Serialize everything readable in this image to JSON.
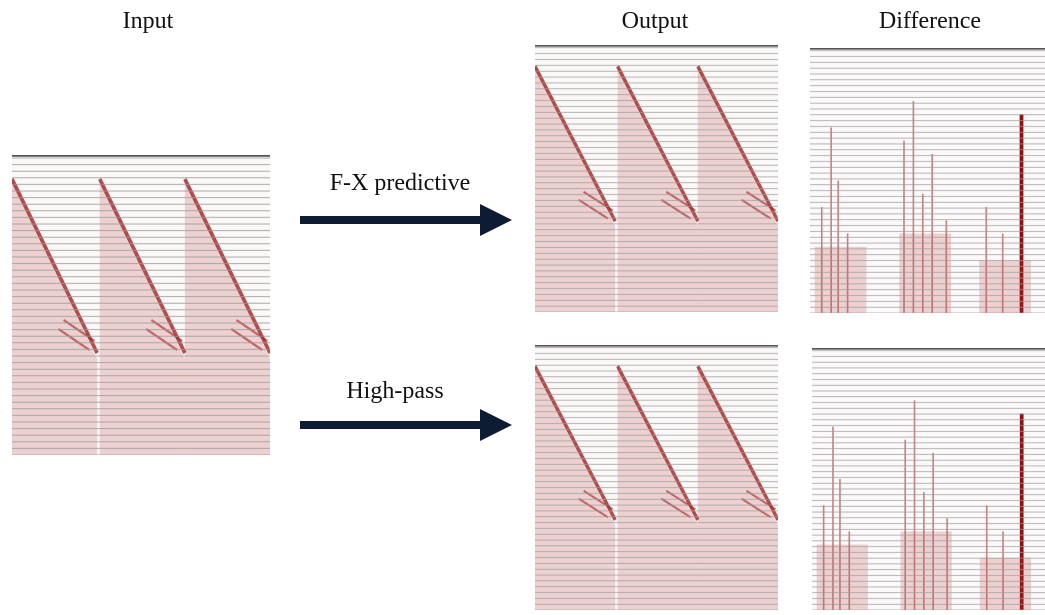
{
  "titles": {
    "input": "Input",
    "output": "Output",
    "difference": "Difference"
  },
  "methods": [
    "F-X predictive",
    "High-pass"
  ]
}
